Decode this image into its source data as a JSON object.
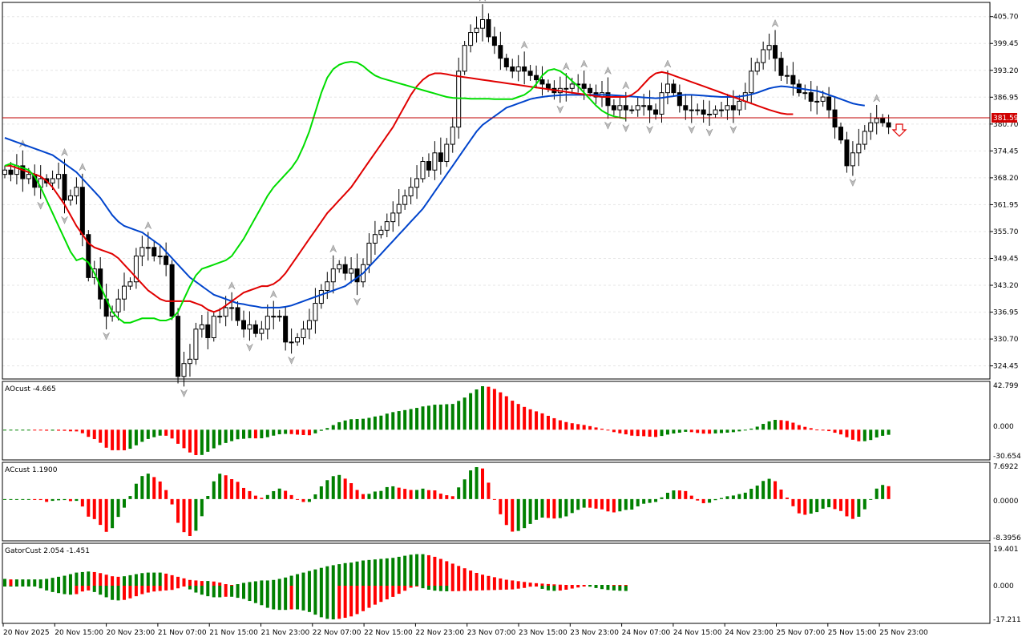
{
  "price_axis": [
    "405.70",
    "399.45",
    "393.20",
    "386.95",
    "380.70",
    "374.45",
    "368.20",
    "361.95",
    "355.70",
    "349.45",
    "343.20",
    "336.95",
    "330.70",
    "324.45"
  ],
  "current_price": "381.59",
  "time_axis": [
    "20 Nov 2025",
    "20 Nov 15:00",
    "20 Nov 23:00",
    "21 Nov 07:00",
    "21 Nov 15:00",
    "21 Nov 23:00",
    "22 Nov 07:00",
    "22 Nov 15:00",
    "22 Nov 23:00",
    "23 Nov 07:00",
    "23 Nov 15:00",
    "23 Nov 23:00",
    "24 Nov 07:00",
    "24 Nov 15:00",
    "24 Nov 23:00",
    "25 Nov 07:00",
    "25 Nov 15:00",
    "25 Nov 23:00"
  ],
  "ao": {
    "label": "AOcust -4.665",
    "top": "42.799",
    "mid": "0.000",
    "bottom": "-30.654"
  },
  "ac": {
    "label": "ACcust 1.1900",
    "top": "7.6922",
    "mid": "0.0000",
    "bottom": "-8.3956"
  },
  "gator": {
    "label": "GatorCust 2.054 -1.451",
    "top": "19.401",
    "mid": "0.000",
    "bottom": "-17.211"
  },
  "colors": {
    "up": "#008000",
    "down": "#ff0000",
    "jaw": "#0044cc",
    "teeth": "#e00000",
    "lips": "#00dd00",
    "price_line": "#c00000"
  },
  "chart_data": {
    "type": "candlestick",
    "ylim": [
      321.4,
      409.0
    ],
    "closes": [
      370,
      369,
      371,
      368,
      369,
      366,
      368,
      367,
      368,
      369,
      363,
      364,
      366,
      355,
      345,
      347,
      340,
      336,
      337,
      340,
      343,
      344,
      350,
      352,
      352,
      350,
      350,
      348,
      336,
      322,
      325,
      326,
      333,
      334,
      331,
      336,
      336,
      338,
      338,
      335,
      333,
      334,
      332,
      333,
      336,
      336,
      336,
      330,
      330,
      331,
      333,
      335,
      339,
      342,
      344,
      347,
      348,
      346,
      347,
      344,
      348,
      353,
      355,
      356,
      358,
      360,
      362,
      364,
      366,
      368,
      372,
      370,
      374,
      372,
      376,
      380,
      393,
      399,
      402,
      403,
      405,
      401,
      399,
      396,
      394,
      393,
      394,
      393,
      392,
      391,
      390,
      389,
      388,
      389,
      389,
      390,
      390,
      389,
      388,
      387,
      388,
      385,
      384,
      385,
      384,
      384,
      385,
      385,
      384,
      383,
      388,
      390,
      388,
      385,
      384,
      384,
      384,
      383,
      383,
      384,
      384,
      385,
      384,
      386,
      388,
      393,
      395,
      398,
      399,
      396,
      392,
      392,
      390,
      388,
      388,
      386,
      386,
      387,
      384,
      380,
      377,
      371,
      374,
      376,
      379,
      381,
      382,
      381,
      380
    ],
    "jaw": [
      377.5,
      377,
      376.5,
      376,
      375.5,
      375,
      374.5,
      374,
      373.5,
      372.5,
      371.5,
      370.5,
      369.5,
      368,
      366.5,
      365,
      363.5,
      361.5,
      359.5,
      358,
      357,
      356.5,
      356,
      355.5,
      354.5,
      353.5,
      352.5,
      351,
      349.5,
      348,
      346.5,
      345,
      344,
      343,
      342,
      341,
      340.5,
      340,
      339.5,
      339,
      338.8,
      338.5,
      338.3,
      338,
      338,
      338,
      338,
      338.2,
      338.5,
      339,
      339.5,
      340,
      340.5,
      341,
      341.5,
      342,
      342.5,
      343,
      344,
      345,
      346,
      347.5,
      349,
      350.5,
      352,
      353.5,
      355,
      356.5,
      358,
      359.5,
      361,
      363,
      365,
      367,
      369,
      371,
      373,
      375,
      377,
      379,
      380.5,
      381.5,
      382.5,
      383.5,
      384.5,
      385,
      385.5,
      386,
      386.5,
      386.8,
      387,
      387.2,
      387.3,
      387.4,
      387.5,
      387.5,
      387.5,
      387.5,
      387.5,
      387.5,
      387.5,
      387.5,
      387.4,
      387.3,
      387.2,
      387.1,
      387,
      386.9,
      386.8,
      386.7,
      386.8,
      387,
      387.2,
      387.4,
      387.5,
      387.5,
      387.4,
      387.3,
      387.2,
      387.1,
      387,
      387,
      387,
      387.1,
      387.3,
      387.6,
      388,
      388.5,
      389,
      389.3,
      389.5,
      389.4,
      389.2,
      389,
      388.8,
      388.6,
      388.4,
      388,
      387.5,
      387,
      386.5,
      386,
      385.5,
      385.2,
      385
    ],
    "teeth": [
      371,
      371,
      370.5,
      370,
      369.5,
      369,
      368.5,
      367.5,
      366,
      364,
      362,
      359.5,
      357,
      355,
      353,
      352,
      351.5,
      351,
      350.5,
      349.5,
      348,
      346.5,
      345,
      343.5,
      342,
      341,
      340,
      339.5,
      339.5,
      339.5,
      339.5,
      339.5,
      339,
      338.5,
      337.5,
      337,
      337.5,
      338.5,
      339.5,
      340.5,
      341.5,
      342,
      342.5,
      343,
      343,
      343.5,
      344.5,
      346,
      348,
      350,
      352,
      354,
      356,
      358,
      360,
      361.5,
      363,
      364.5,
      366,
      368,
      370,
      372,
      374,
      376,
      378,
      380,
      382.5,
      385,
      387.5,
      389.5,
      391,
      392,
      392.5,
      392.5,
      392.3,
      392,
      391.8,
      391.6,
      391.4,
      391.2,
      391,
      390.8,
      390.6,
      390.4,
      390.2,
      390,
      389.8,
      389.6,
      389.4,
      389.2,
      389,
      388.8,
      388.6,
      388.4,
      388.2,
      388,
      387.8,
      387.6,
      387.4,
      387.2,
      387,
      387,
      387,
      387,
      387,
      387.5,
      388.5,
      390,
      391.5,
      392.5,
      392.8,
      392.5,
      392,
      391.5,
      391,
      390.5,
      390,
      389.5,
      389,
      388.5,
      388,
      387.5,
      387,
      386.5,
      386,
      385.5,
      385,
      384.5,
      384,
      383.6,
      383.2,
      383,
      383
    ],
    "lips": [
      371,
      371.5,
      371,
      370.5,
      370,
      368.5,
      366,
      363,
      360,
      357,
      354,
      351,
      349,
      349.5,
      348.5,
      346,
      343,
      340,
      337,
      335.5,
      334.5,
      334.5,
      335,
      335.5,
      335.5,
      335.5,
      335,
      335,
      335.5,
      337,
      340,
      343,
      345.5,
      347,
      347.5,
      348,
      348.5,
      349,
      350,
      352,
      354,
      356.5,
      359,
      361.5,
      364,
      366,
      367.5,
      369,
      370.5,
      372.5,
      375.5,
      379,
      383.5,
      388,
      391.5,
      393.5,
      394.5,
      395,
      395.2,
      395,
      394.2,
      393,
      392,
      391.4,
      391,
      390.6,
      390.2,
      389.8,
      389.4,
      389,
      388.6,
      388.2,
      387.8,
      387.4,
      387,
      386.8,
      386.7,
      386.7,
      386.6,
      386.6,
      386.6,
      386.6,
      386.5,
      386.5,
      386.5,
      386.5,
      387,
      387.5,
      388.5,
      390,
      392,
      393.2,
      393.5,
      393,
      392,
      390.7,
      389.5,
      388,
      386.5,
      385,
      383.8,
      383,
      382.5,
      382.2,
      382
    ]
  }
}
